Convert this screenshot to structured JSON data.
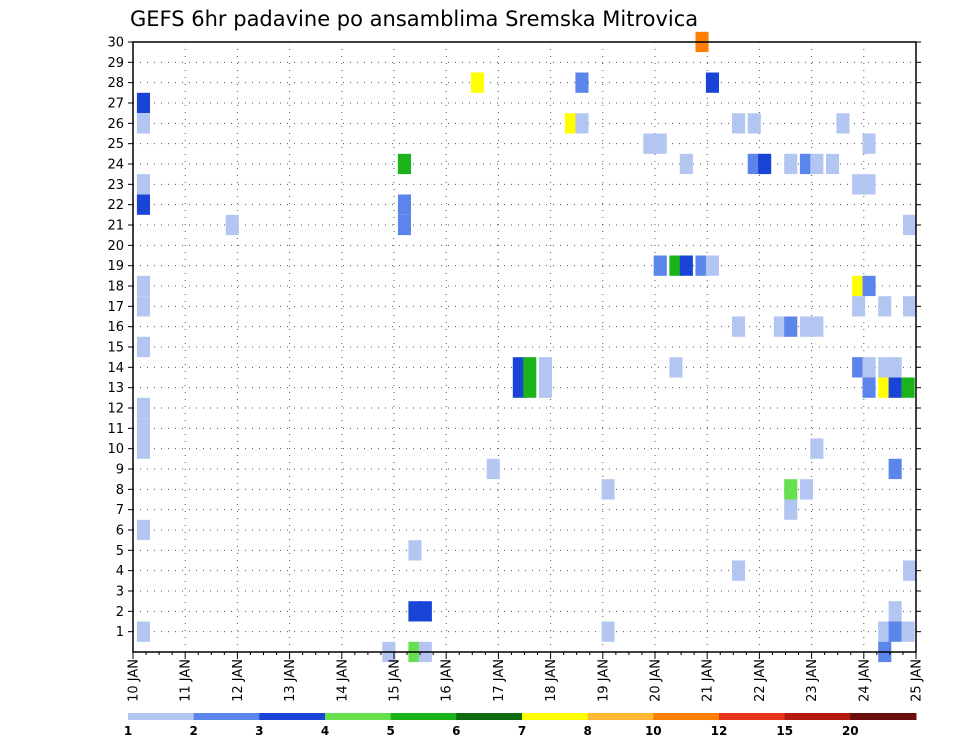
{
  "chart_data": {
    "type": "heatmap",
    "title": "GEFS 6hr padavine po ansamblima Sremska Mitrovica",
    "x_labels": [
      "10 JAN",
      "11 JAN",
      "12 JAN",
      "13 JAN",
      "14 JAN",
      "15 JAN",
      "16 JAN",
      "17 JAN",
      "18 JAN",
      "19 JAN",
      "20 JAN",
      "21 JAN",
      "22 JAN",
      "23 JAN",
      "24 JAN",
      "25 JAN"
    ],
    "x_range_days": [
      10,
      25
    ],
    "y_labels": [
      "1",
      "2",
      "3",
      "4",
      "5",
      "6",
      "7",
      "8",
      "9",
      "10",
      "11",
      "12",
      "13",
      "14",
      "15",
      "16",
      "17",
      "18",
      "19",
      "20",
      "21",
      "22",
      "23",
      "24",
      "25",
      "26",
      "27",
      "28",
      "29",
      "30"
    ],
    "y_range": [
      0,
      30
    ],
    "grid": true,
    "legend": {
      "position": "bottom",
      "labels": [
        "1",
        "2",
        "3",
        "4",
        "5",
        "6",
        "7",
        "8",
        "10",
        "12",
        "15",
        "20"
      ],
      "colors": [
        "#b3c6f2",
        "#5c85eb",
        "#1a44d6",
        "#66e04d",
        "#1ab31a",
        "#0d6b0d",
        "#ffff00",
        "#ffb833",
        "#ff8000",
        "#e6331a",
        "#b31a0d",
        "#6b0d0d"
      ]
    },
    "cells": [
      {
        "x": 10.2,
        "y": 27,
        "level": 3
      },
      {
        "x": 10.2,
        "y": 26,
        "level": 1
      },
      {
        "x": 10.2,
        "y": 23,
        "level": 1
      },
      {
        "x": 10.2,
        "y": 22,
        "level": 3
      },
      {
        "x": 10.2,
        "y": 18,
        "level": 1
      },
      {
        "x": 10.2,
        "y": 17,
        "level": 1
      },
      {
        "x": 10.2,
        "y": 15,
        "level": 1
      },
      {
        "x": 10.2,
        "y": 12,
        "level": 1
      },
      {
        "x": 10.2,
        "y": 11,
        "level": 1
      },
      {
        "x": 10.2,
        "y": 10,
        "level": 1
      },
      {
        "x": 10.2,
        "y": 6,
        "level": 1
      },
      {
        "x": 10.2,
        "y": 1,
        "level": 1
      },
      {
        "x": 11.9,
        "y": 21,
        "level": 1
      },
      {
        "x": 14.9,
        "y": 0,
        "level": 1
      },
      {
        "x": 15.2,
        "y": 24,
        "level": 5
      },
      {
        "x": 15.2,
        "y": 22,
        "level": 2
      },
      {
        "x": 15.2,
        "y": 21,
        "level": 2
      },
      {
        "x": 15.4,
        "y": 5,
        "level": 1
      },
      {
        "x": 15.4,
        "y": 2,
        "level": 3
      },
      {
        "x": 15.6,
        "y": 2,
        "level": 3
      },
      {
        "x": 15.4,
        "y": 0,
        "level": 4
      },
      {
        "x": 15.6,
        "y": 0,
        "level": 1
      },
      {
        "x": 16.6,
        "y": 28,
        "level": 7
      },
      {
        "x": 16.9,
        "y": 9,
        "level": 1
      },
      {
        "x": 17.4,
        "y": 14,
        "level": 3
      },
      {
        "x": 17.4,
        "y": 13,
        "level": 3
      },
      {
        "x": 17.6,
        "y": 14,
        "level": 5
      },
      {
        "x": 17.6,
        "y": 13,
        "level": 5
      },
      {
        "x": 17.9,
        "y": 14,
        "level": 1
      },
      {
        "x": 17.9,
        "y": 13,
        "level": 1
      },
      {
        "x": 18.4,
        "y": 26,
        "level": 7
      },
      {
        "x": 18.6,
        "y": 28,
        "level": 2
      },
      {
        "x": 18.6,
        "y": 26,
        "level": 1
      },
      {
        "x": 19.1,
        "y": 8,
        "level": 1
      },
      {
        "x": 19.1,
        "y": 1,
        "level": 1
      },
      {
        "x": 19.9,
        "y": 25,
        "level": 1
      },
      {
        "x": 20.1,
        "y": 25,
        "level": 1
      },
      {
        "x": 20.1,
        "y": 19,
        "level": 2
      },
      {
        "x": 20.4,
        "y": 19,
        "level": 5
      },
      {
        "x": 20.6,
        "y": 19,
        "level": 3
      },
      {
        "x": 20.9,
        "y": 19,
        "level": 2
      },
      {
        "x": 21.1,
        "y": 19,
        "level": 1
      },
      {
        "x": 20.4,
        "y": 14,
        "level": 1
      },
      {
        "x": 20.6,
        "y": 24,
        "level": 1
      },
      {
        "x": 20.9,
        "y": 30,
        "level": 9
      },
      {
        "x": 21.1,
        "y": 28,
        "level": 3
      },
      {
        "x": 21.6,
        "y": 26,
        "level": 1
      },
      {
        "x": 21.9,
        "y": 26,
        "level": 1
      },
      {
        "x": 21.6,
        "y": 16,
        "level": 1
      },
      {
        "x": 21.6,
        "y": 4,
        "level": 1
      },
      {
        "x": 21.9,
        "y": 24,
        "level": 2
      },
      {
        "x": 22.1,
        "y": 24,
        "level": 3
      },
      {
        "x": 22.4,
        "y": 16,
        "level": 1
      },
      {
        "x": 22.6,
        "y": 24,
        "level": 1
      },
      {
        "x": 22.9,
        "y": 24,
        "level": 2
      },
      {
        "x": 23.1,
        "y": 24,
        "level": 1
      },
      {
        "x": 23.4,
        "y": 24,
        "level": 1
      },
      {
        "x": 22.6,
        "y": 16,
        "level": 2
      },
      {
        "x": 22.9,
        "y": 16,
        "level": 1
      },
      {
        "x": 23.1,
        "y": 16,
        "level": 1
      },
      {
        "x": 22.6,
        "y": 8,
        "level": 4
      },
      {
        "x": 22.9,
        "y": 8,
        "level": 1
      },
      {
        "x": 22.6,
        "y": 7,
        "level": 1
      },
      {
        "x": 23.1,
        "y": 10,
        "level": 1
      },
      {
        "x": 23.6,
        "y": 26,
        "level": 1
      },
      {
        "x": 23.9,
        "y": 23,
        "level": 1
      },
      {
        "x": 24.1,
        "y": 23,
        "level": 1
      },
      {
        "x": 24.1,
        "y": 25,
        "level": 1
      },
      {
        "x": 23.9,
        "y": 18,
        "level": 7
      },
      {
        "x": 24.1,
        "y": 18,
        "level": 2
      },
      {
        "x": 23.9,
        "y": 17,
        "level": 1
      },
      {
        "x": 24.4,
        "y": 17,
        "level": 1
      },
      {
        "x": 24.9,
        "y": 17,
        "level": 1
      },
      {
        "x": 24.9,
        "y": 21,
        "level": 1
      },
      {
        "x": 23.9,
        "y": 14,
        "level": 2
      },
      {
        "x": 24.1,
        "y": 14,
        "level": 1
      },
      {
        "x": 24.4,
        "y": 14,
        "level": 1
      },
      {
        "x": 24.6,
        "y": 14,
        "level": 1
      },
      {
        "x": 24.1,
        "y": 13,
        "level": 2
      },
      {
        "x": 24.4,
        "y": 13,
        "level": 7
      },
      {
        "x": 24.6,
        "y": 13,
        "level": 3
      },
      {
        "x": 24.85,
        "y": 13,
        "level": 5
      },
      {
        "x": 24.6,
        "y": 9,
        "level": 2
      },
      {
        "x": 24.9,
        "y": 4,
        "level": 1
      },
      {
        "x": 24.6,
        "y": 2,
        "level": 1
      },
      {
        "x": 24.4,
        "y": 1,
        "level": 1
      },
      {
        "x": 24.6,
        "y": 1,
        "level": 2
      },
      {
        "x": 24.85,
        "y": 1,
        "level": 1
      },
      {
        "x": 24.4,
        "y": 0,
        "level": 2
      }
    ]
  }
}
